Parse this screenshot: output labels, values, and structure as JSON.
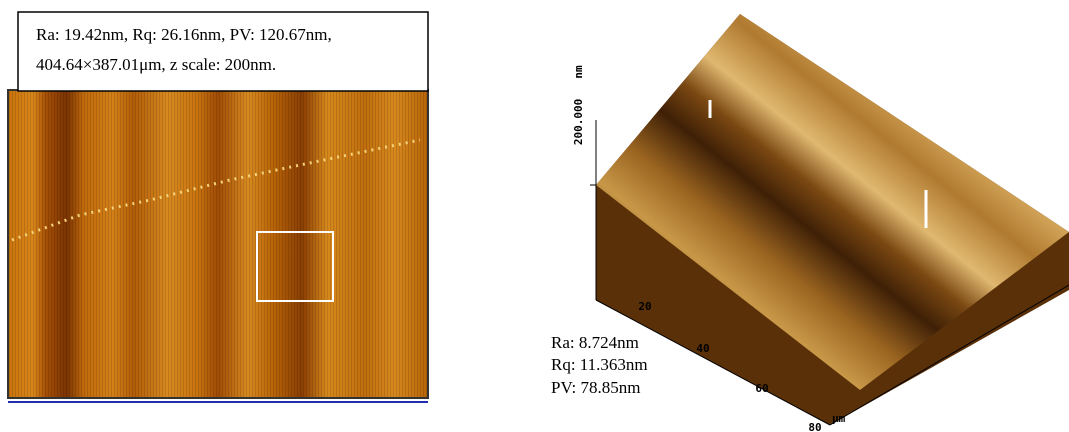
{
  "left_panel": {
    "caption_lines": [
      "Ra: 19.42nm, Rq: 26.16nm, PV: 120.67nm,",
      "404.64×387.01μm, z scale: 200nm."
    ]
  },
  "right_panel": {
    "z_unit": "nm",
    "z_tick": "200.000",
    "axis_ticks": [
      "20",
      "40",
      "60",
      "80"
    ],
    "axis_unit": "μm",
    "stats": [
      "Ra: 8.724nm",
      "Rq: 11.363nm",
      "PV: 78.85nm"
    ]
  }
}
